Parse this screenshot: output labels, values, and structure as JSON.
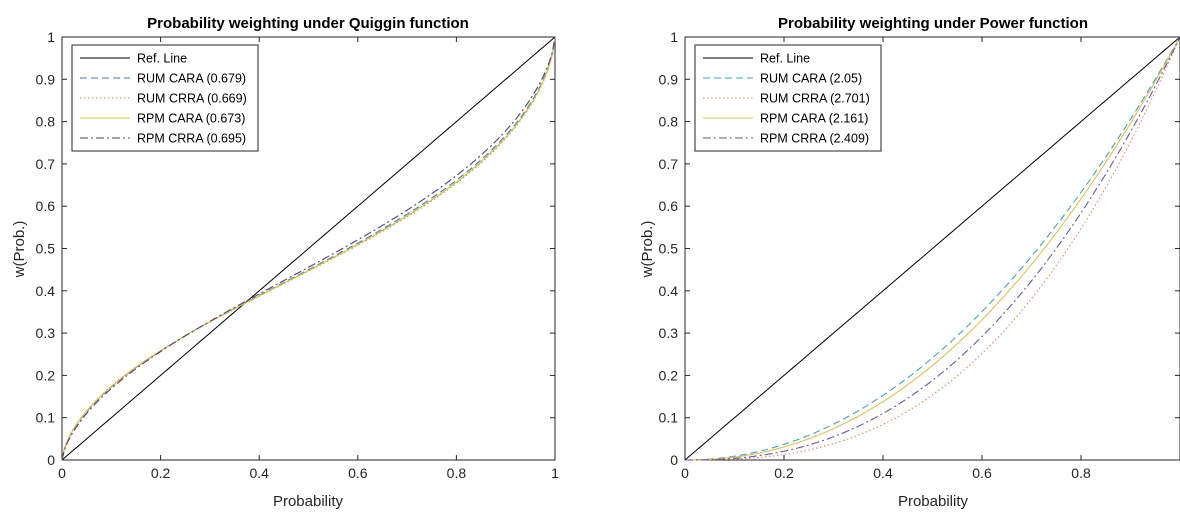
{
  "chart_data": [
    {
      "type": "line",
      "title": "Probability weighting under Quiggin function",
      "xlabel": "Probability",
      "ylabel": "w(Prob.)",
      "xlim": [
        0,
        1
      ],
      "ylim": [
        0,
        1
      ],
      "xticks": [
        "0",
        "0.2",
        "0.4",
        "0.6",
        "0.8",
        "1"
      ],
      "yticks": [
        "0",
        "0.1",
        "0.2",
        "0.3",
        "0.4",
        "0.5",
        "0.6",
        "0.7",
        "0.8",
        "0.9",
        "1"
      ],
      "grid": false,
      "legend_position": "top-left",
      "function": "quiggin",
      "series": [
        {
          "name": "Ref. Line",
          "param": null,
          "color": "#000000",
          "style": "solid"
        },
        {
          "name": "RUM CARA (0.679)",
          "param": 0.679,
          "color": "#4a7ab8",
          "style": "dashed"
        },
        {
          "name": "RUM CRRA (0.669)",
          "param": 0.669,
          "color": "#d98a6a",
          "style": "dotted"
        },
        {
          "name": "RPM CARA (0.673)",
          "param": 0.673,
          "color": "#c9c44a",
          "style": "solid"
        },
        {
          "name": "RPM CRRA (0.695)",
          "param": 0.695,
          "color": "#5a3d7a",
          "style": "dashdot"
        }
      ]
    },
    {
      "type": "line",
      "title": "Probability weighting under Power function",
      "xlabel": "Probability",
      "ylabel": "w(Prob.)",
      "xlim": [
        0,
        1
      ],
      "ylim": [
        0,
        1
      ],
      "xticks": [
        "0",
        "0.2",
        "0.4",
        "0.6",
        "0.8"
      ],
      "yticks": [
        "0",
        "0.1",
        "0.2",
        "0.3",
        "0.4",
        "0.5",
        "0.6",
        "0.7",
        "0.8",
        "0.9",
        "1"
      ],
      "grid": false,
      "legend_position": "top-left",
      "function": "power",
      "series": [
        {
          "name": "Ref. Line",
          "param": null,
          "color": "#000000",
          "style": "solid"
        },
        {
          "name": "RUM CARA (2.05)",
          "param": 2.05,
          "color": "#4a9ec0",
          "style": "dashed"
        },
        {
          "name": "RUM CRRA (2.701)",
          "param": 2.701,
          "color": "#d98a6a",
          "style": "dotted"
        },
        {
          "name": "RPM CARA (2.161)",
          "param": 2.161,
          "color": "#d8c35a",
          "style": "solid"
        },
        {
          "name": "RPM CRRA (2.409)",
          "param": 2.409,
          "color": "#6a5aa0",
          "style": "dashdot"
        }
      ]
    }
  ]
}
